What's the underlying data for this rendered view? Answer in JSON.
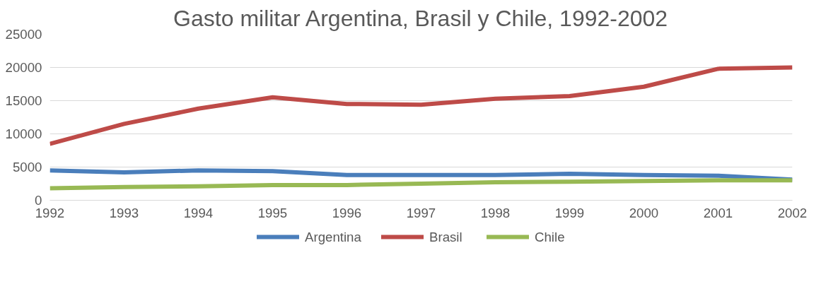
{
  "chart_data": {
    "type": "line",
    "title": "Gasto militar Argentina, Brasil y Chile, 1992-2002",
    "x": [
      1992,
      1993,
      1994,
      1995,
      1996,
      1997,
      1998,
      1999,
      2000,
      2001,
      2002
    ],
    "series": [
      {
        "name": "Argentina",
        "color": "#4a7ebb",
        "values": [
          4500,
          4200,
          4500,
          4400,
          3800,
          3800,
          3800,
          4000,
          3800,
          3700,
          3100
        ]
      },
      {
        "name": "Brasil",
        "color": "#be4b48",
        "values": [
          8500,
          11500,
          13800,
          15500,
          14500,
          14400,
          15300,
          15700,
          17100,
          19800,
          20000
        ]
      },
      {
        "name": "Chile",
        "color": "#98b954",
        "values": [
          1800,
          2000,
          2100,
          2300,
          2300,
          2500,
          2700,
          2800,
          2900,
          3000,
          3000
        ]
      }
    ],
    "xlim": [
      1992,
      2002
    ],
    "xticks": [
      1992,
      1993,
      1994,
      1995,
      1996,
      1997,
      1998,
      1999,
      2000,
      2001,
      2002
    ],
    "ylim": [
      0,
      25000
    ],
    "yticks": [
      0,
      5000,
      10000,
      15000,
      20000,
      25000
    ],
    "grid": "y",
    "legend": "bottom",
    "marker": "none",
    "line_style": "solid"
  }
}
